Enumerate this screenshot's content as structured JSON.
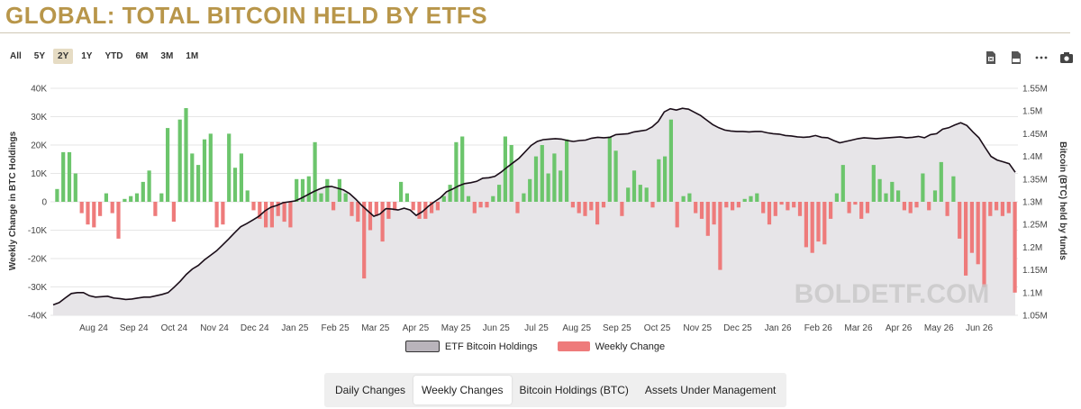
{
  "page": {
    "title": "GLOBAL: TOTAL BITCOIN HELD BY ETFS"
  },
  "range_buttons": [
    {
      "label": "All"
    },
    {
      "label": "5Y"
    },
    {
      "label": "2Y",
      "active": true
    },
    {
      "label": "1Y"
    },
    {
      "label": "YTD"
    },
    {
      "label": "6M"
    },
    {
      "label": "3M"
    },
    {
      "label": "1M"
    }
  ],
  "toolbar": [
    "xlsx-export-icon",
    "csv-export-icon",
    "more-menu-icon",
    "camera-icon"
  ],
  "watermark": "BOLDETF.COM",
  "tabs": [
    {
      "label": "Daily Changes"
    },
    {
      "label": "Weekly Changes",
      "active": true
    },
    {
      "label": "Bitcoin Holdings (BTC)"
    },
    {
      "label": "Assets Under Management"
    }
  ],
  "colors": {
    "accent": "#b8964a",
    "positive": "#6cc56c",
    "negative": "#ee7b7b",
    "holdings_line": "#1a0d18",
    "holdings_fill": "#c9c5cb"
  },
  "chart_data": {
    "type": "bar",
    "left_axis": {
      "label": "Weekly Change in BTC Holdings",
      "ylim": [
        -40000,
        40000
      ],
      "ticks": [
        "-40K",
        "-30K",
        "-20K",
        "-10K",
        "0",
        "10K",
        "20K",
        "30K",
        "40K"
      ]
    },
    "right_axis": {
      "label": "Bitcoin (BTC) held by funds",
      "ylim": [
        1050000,
        1550000
      ],
      "ticks": [
        "1.05M",
        "1.1M",
        "1.15M",
        "1.2M",
        "1.25M",
        "1.3M",
        "1.35M",
        "1.4M",
        "1.45M",
        "1.5M",
        "1.55M"
      ]
    },
    "x_ticks": [
      "Aug 24",
      "Sep 24",
      "Oct 24",
      "Nov 24",
      "Dec 24",
      "Jan 25",
      "Feb 25",
      "Mar 25",
      "Apr 25",
      "May 25",
      "Jun 25",
      "Jul 25",
      "Aug 25",
      "Sep 25",
      "Oct 25",
      "Nov 25",
      "Dec 25",
      "Jan 26",
      "Feb 26",
      "Mar 26",
      "Apr 26",
      "May 26",
      "Jun 26"
    ],
    "legend": [
      {
        "name": "ETF Bitcoin Holdings",
        "color": "#c9c5cb"
      },
      {
        "name": "Weekly Change",
        "color": "#ee7b7b"
      }
    ],
    "series": [
      {
        "name": "Weekly Change",
        "values": [
          4500,
          17500,
          17500,
          10000,
          -4000,
          -8000,
          -9000,
          -5000,
          3000,
          -4000,
          -13000,
          1000,
          2000,
          3000,
          7000,
          11000,
          -5000,
          3000,
          26000,
          -7000,
          29000,
          33000,
          17000,
          13000,
          22000,
          24000,
          -9000,
          -8000,
          24000,
          12000,
          17000,
          4000,
          -3000,
          -6000,
          -9000,
          -9000,
          -5000,
          -7000,
          -9000,
          8000,
          8000,
          9000,
          21000,
          3000,
          8000,
          -3000,
          8000,
          3000,
          -5000,
          -7000,
          -27000,
          -10000,
          -5000,
          -14000,
          -6000,
          -3000,
          7000,
          3000,
          -3000,
          -6000,
          -6000,
          -4000,
          -3000,
          2000,
          6000,
          21000,
          23000,
          2000,
          -4000,
          -2000,
          -2000,
          2000,
          6000,
          23000,
          20000,
          -4000,
          3000,
          8000,
          16000,
          20000,
          10000,
          17000,
          11000,
          22000,
          -2000,
          -4000,
          -5000,
          -3000,
          -8000,
          -2000,
          23000,
          18000,
          -5000,
          5000,
          11000,
          6000,
          5000,
          -2000,
          15000,
          16000,
          29000,
          -9000,
          2000,
          3000,
          -4000,
          -6000,
          -12000,
          -8000,
          -24000,
          -2000,
          -3000,
          -2000,
          1000,
          2000,
          3000,
          -4000,
          -8000,
          -5000,
          -1000,
          -3000,
          -2000,
          -5000,
          -16000,
          -18000,
          -14000,
          -15000,
          -6000,
          3000,
          13000,
          -4000,
          -1000,
          -6000,
          -4000,
          13000,
          8000,
          3000,
          7000,
          4000,
          -3000,
          -4000,
          -2000,
          10000,
          -3000,
          4000,
          14000,
          -5000,
          9000,
          -13000,
          -26000,
          -18000,
          -22000,
          -30000,
          -5000,
          -3000,
          -5000,
          -4000,
          -32000
        ],
        "colors_positive_negative": [
          "#6cc56c",
          "#ee7b7b"
        ]
      },
      {
        "name": "ETF Bitcoin Holdings",
        "values": [
          1073000,
          1078000,
          1088000,
          1098000,
          1100000,
          1100000,
          1093000,
          1090000,
          1091000,
          1092000,
          1088000,
          1087000,
          1085000,
          1086000,
          1088000,
          1090000,
          1090000,
          1093000,
          1096000,
          1100000,
          1112000,
          1125000,
          1140000,
          1152000,
          1160000,
          1172000,
          1182000,
          1192000,
          1205000,
          1218000,
          1232000,
          1245000,
          1252000,
          1260000,
          1268000,
          1280000,
          1288000,
          1292000,
          1298000,
          1300000,
          1302000,
          1308000,
          1315000,
          1322000,
          1328000,
          1333000,
          1334000,
          1330000,
          1326000,
          1318000,
          1306000,
          1292000,
          1280000,
          1268000,
          1273000,
          1285000,
          1284000,
          1282000,
          1286000,
          1282000,
          1270000,
          1278000,
          1290000,
          1300000,
          1309000,
          1322000,
          1328000,
          1335000,
          1340000,
          1342000,
          1345000,
          1352000,
          1353000,
          1356000,
          1365000,
          1376000,
          1386000,
          1396000,
          1410000,
          1424000,
          1433000,
          1437000,
          1438000,
          1439000,
          1438000,
          1435000,
          1433000,
          1435000,
          1436000,
          1440000,
          1442000,
          1441000,
          1442000,
          1448000,
          1449000,
          1450000,
          1454000,
          1456000,
          1458000,
          1465000,
          1477000,
          1498000,
          1505000,
          1502000,
          1506000,
          1504000,
          1497000,
          1490000,
          1480000,
          1470000,
          1463000,
          1458000,
          1456000,
          1455000,
          1455000,
          1454000,
          1455000,
          1455000,
          1452000,
          1450000,
          1449000,
          1446000,
          1445000,
          1443000,
          1442000,
          1443000,
          1446000,
          1442000,
          1441000,
          1435000,
          1430000,
          1433000,
          1436000,
          1439000,
          1441000,
          1440000,
          1439000,
          1440000,
          1441000,
          1442000,
          1443000,
          1441000,
          1442000,
          1444000,
          1441000,
          1448000,
          1450000,
          1460000,
          1463000,
          1469000,
          1474000,
          1468000,
          1454000,
          1441000,
          1420000,
          1400000,
          1392000,
          1388000,
          1384000,
          1365000
        ]
      }
    ]
  }
}
